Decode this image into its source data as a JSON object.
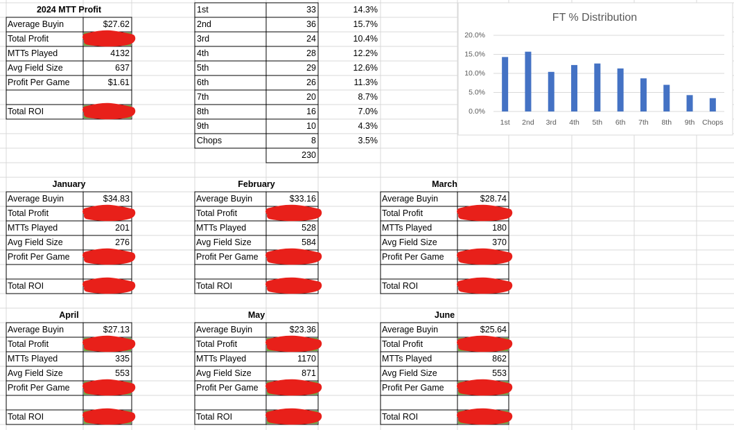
{
  "summary": {
    "title": "2024 MTT Profit",
    "rows": [
      {
        "label": "Average Buyin",
        "value": "$27.62"
      },
      {
        "label": "Total Profit"
      },
      {
        "label": "MTTs Played",
        "value": "4132"
      },
      {
        "label": "Avg Field Size",
        "value": "637"
      },
      {
        "label": "Profit Per Game",
        "value": "$1.61"
      },
      {
        "label": "Total ROI"
      }
    ]
  },
  "finishes": {
    "rows": [
      [
        "1st",
        "33",
        "14.3%"
      ],
      [
        "2nd",
        "36",
        "15.7%"
      ],
      [
        "3rd",
        "24",
        "10.4%"
      ],
      [
        "4th",
        "28",
        "12.2%"
      ],
      [
        "5th",
        "29",
        "12.6%"
      ],
      [
        "6th",
        "26",
        "11.3%"
      ],
      [
        "7th",
        "20",
        "8.7%"
      ],
      [
        "8th",
        "16",
        "7.0%"
      ],
      [
        "9th",
        "10",
        "4.3%"
      ],
      [
        "Chops",
        "8",
        "3.5%"
      ]
    ],
    "total": "230"
  },
  "chart_data": {
    "type": "bar",
    "title": "FT % Distribution",
    "categories": [
      "1st",
      "2nd",
      "3rd",
      "4th",
      "5th",
      "6th",
      "7th",
      "8th",
      "9th",
      "Chops"
    ],
    "values": [
      14.3,
      15.7,
      10.4,
      12.2,
      12.6,
      11.3,
      8.7,
      7.0,
      4.3,
      3.5
    ],
    "color": "#4472c4",
    "ylim": [
      0,
      20
    ],
    "yticks": [
      {
        "value": 0,
        "label": "0.0%"
      },
      {
        "value": 5,
        "label": "5.0%"
      },
      {
        "value": 10,
        "label": "10.0%"
      },
      {
        "value": 15,
        "label": "15.0%"
      },
      {
        "value": 20,
        "label": "20.0%"
      }
    ],
    "grid": true
  },
  "months": [
    {
      "title": "January",
      "rows": [
        {
          "label": "Average Buyin",
          "value": "$34.83"
        },
        {
          "label": "Total Profit"
        },
        {
          "label": "MTTs Played",
          "value": "201"
        },
        {
          "label": "Avg Field Size",
          "value": "276"
        },
        {
          "label": "Profit Per Game"
        },
        {
          "label": "Total ROI"
        }
      ]
    },
    {
      "title": "February",
      "rows": [
        {
          "label": "Average Buyin",
          "value": "$33.16"
        },
        {
          "label": "Total Profit"
        },
        {
          "label": "MTTs Played",
          "value": "528"
        },
        {
          "label": "Avg Field Size",
          "value": "584"
        },
        {
          "label": "Profit Per Game"
        },
        {
          "label": "Total ROI"
        }
      ]
    },
    {
      "title": "March",
      "rows": [
        {
          "label": "Average Buyin",
          "value": "$28.74"
        },
        {
          "label": "Total Profit"
        },
        {
          "label": "MTTs Played",
          "value": "180"
        },
        {
          "label": "Avg Field Size",
          "value": "370"
        },
        {
          "label": "Profit Per Game"
        },
        {
          "label": "Total ROI"
        }
      ]
    },
    {
      "title": "April",
      "rows": [
        {
          "label": "Average Buyin",
          "value": "$27.13"
        },
        {
          "label": "Total Profit"
        },
        {
          "label": "MTTs Played",
          "value": "335"
        },
        {
          "label": "Avg Field Size",
          "value": "553"
        },
        {
          "label": "Profit Per Game"
        },
        {
          "label": "Total ROI"
        }
      ]
    },
    {
      "title": "May",
      "rows": [
        {
          "label": "Average Buyin",
          "value": "$23.36"
        },
        {
          "label": "Total Profit"
        },
        {
          "label": "MTTs Played",
          "value": "1170"
        },
        {
          "label": "Avg Field Size",
          "value": "871"
        },
        {
          "label": "Profit Per Game"
        },
        {
          "label": "Total ROI"
        }
      ]
    },
    {
      "title": "June",
      "rows": [
        {
          "label": "Average Buyin",
          "value": "$25.64"
        },
        {
          "label": "Total Profit"
        },
        {
          "label": "MTTs Played",
          "value": "862"
        },
        {
          "label": "Avg Field Size",
          "value": "553"
        },
        {
          "label": "Profit Per Game"
        },
        {
          "label": "Total ROI"
        }
      ]
    }
  ]
}
